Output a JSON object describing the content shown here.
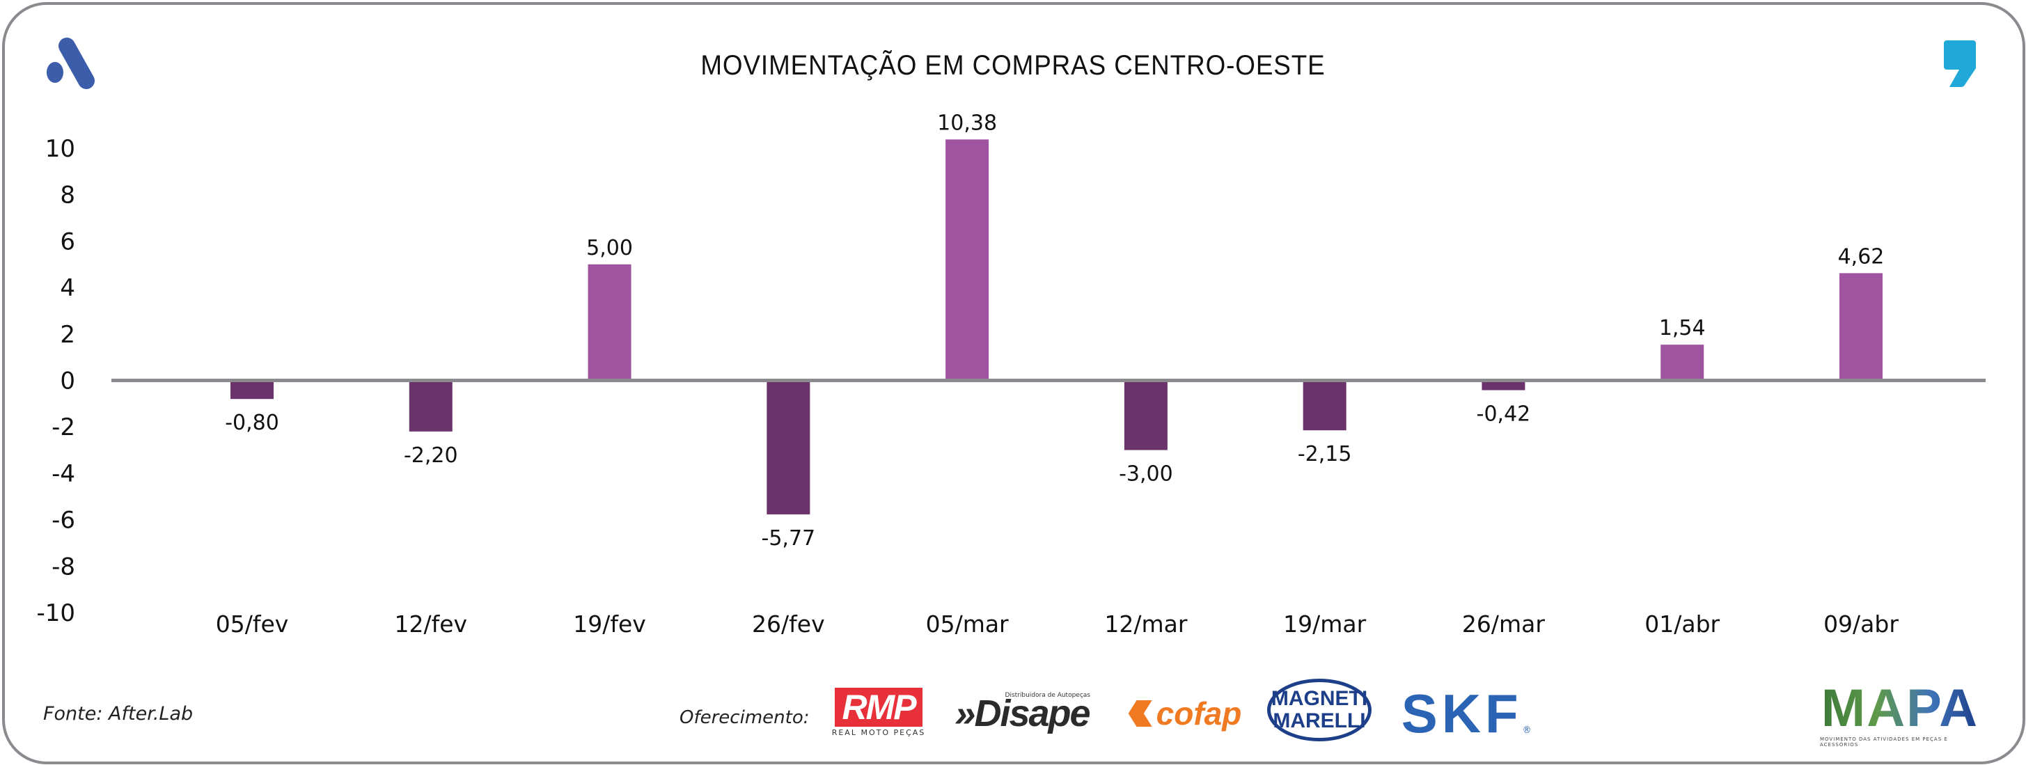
{
  "header": {
    "title": "MOVIMENTAÇÃO EM COMPRAS CENTRO-OESTE",
    "left_logo_icon": "a-logo-icon",
    "right_logo_icon": "comma-logo-icon"
  },
  "colors": {
    "positive_bar": "#A054A0",
    "negative_bar": "#6B336B",
    "axis_line": "#8A8A8F",
    "logo_blue": "#3C5DAA",
    "logo_cyan": "#1FA8D8",
    "frame_border": "#8A8A8F"
  },
  "chart_data": {
    "type": "bar",
    "title": "MOVIMENTAÇÃO EM COMPRAS CENTRO-OESTE",
    "xlabel": "",
    "ylabel": "",
    "categories": [
      "05/fev",
      "12/fev",
      "19/fev",
      "26/fev",
      "05/mar",
      "12/mar",
      "19/mar",
      "26/mar",
      "01/abr",
      "09/abr"
    ],
    "values": [
      -0.8,
      -2.2,
      5.0,
      -5.77,
      10.38,
      -3.0,
      -2.15,
      -0.42,
      1.54,
      4.62
    ],
    "value_labels": [
      "-0,80",
      "-2,20",
      "5,00",
      "-5,77",
      "10,38",
      "-3,00",
      "-2,15",
      "-0,42",
      "1,54",
      "4,62"
    ],
    "ylim": [
      -10,
      10
    ],
    "yticks": [
      10,
      8,
      6,
      4,
      2,
      0,
      -2,
      -4,
      -6,
      -8,
      -10
    ],
    "grid": false,
    "legend": "none"
  },
  "footer": {
    "source": "Fonte: After.Lab",
    "sponsored_by": "Oferecimento:",
    "sponsors": [
      {
        "name": "RMP",
        "tagline": "REAL MOTO PEÇAS"
      },
      {
        "name": "Disape",
        "tagline": "Distribuidora de Autopeças"
      },
      {
        "name": "cofap",
        "tagline": ""
      },
      {
        "name": "MAGNETI MARELLI",
        "line1": "MAGNETI",
        "line2": "MARELLI"
      },
      {
        "name": "SKF",
        "reg": "®"
      }
    ],
    "brand": {
      "name": "MAPA",
      "tagline": "MOVIMENTO DAS ATIVIDADES EM PEÇAS E ACESSÓRIOS"
    }
  }
}
